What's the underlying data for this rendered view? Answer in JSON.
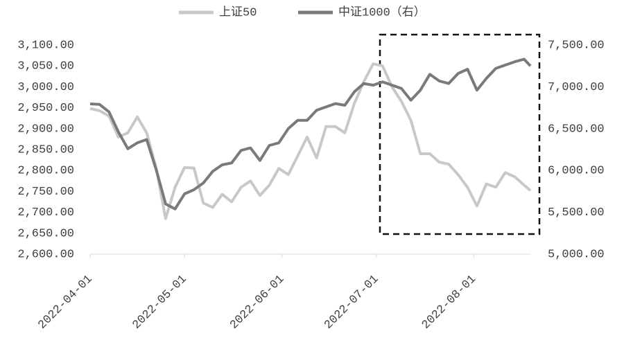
{
  "chart_data": {
    "type": "line",
    "x": [
      "2022-04-01",
      "2022-04-04",
      "2022-04-07",
      "2022-04-10",
      "2022-04-13",
      "2022-04-16",
      "2022-04-19",
      "2022-04-22",
      "2022-04-25",
      "2022-04-28",
      "2022-05-01",
      "2022-05-04",
      "2022-05-07",
      "2022-05-10",
      "2022-05-13",
      "2022-05-16",
      "2022-05-19",
      "2022-05-22",
      "2022-05-25",
      "2022-05-28",
      "2022-05-31",
      "2022-06-03",
      "2022-06-06",
      "2022-06-09",
      "2022-06-12",
      "2022-06-15",
      "2022-06-18",
      "2022-06-21",
      "2022-06-24",
      "2022-06-27",
      "2022-06-30",
      "2022-07-03",
      "2022-07-06",
      "2022-07-09",
      "2022-07-12",
      "2022-07-15",
      "2022-07-18",
      "2022-07-21",
      "2022-07-24",
      "2022-07-27",
      "2022-07-30",
      "2022-08-02",
      "2022-08-05",
      "2022-08-08",
      "2022-08-11",
      "2022-08-14",
      "2022-08-17",
      "2022-08-19"
    ],
    "series": [
      {
        "name": "上证50",
        "color": "#c8c8c8",
        "values": [
          2948,
          2943,
          2930,
          2880,
          2890,
          2928,
          2890,
          2805,
          2685,
          2760,
          2807,
          2806,
          2722,
          2712,
          2743,
          2725,
          2760,
          2775,
          2740,
          2765,
          2805,
          2790,
          2835,
          2880,
          2830,
          2905,
          2905,
          2890,
          2960,
          3012,
          3055,
          3050,
          3000,
          2965,
          2920,
          2840,
          2840,
          2820,
          2815,
          2790,
          2760,
          2715,
          2768,
          2760,
          2795,
          2785,
          2765,
          2752
        ]
      },
      {
        "name": "中证1000（右）",
        "color": "#7a7a7a",
        "axis": "y2",
        "values": [
          6796,
          6790,
          6700,
          6460,
          6260,
          6330,
          6370,
          6010,
          5600,
          5540,
          5720,
          5770,
          5850,
          5990,
          6068,
          6090,
          6240,
          6270,
          6120,
          6300,
          6330,
          6500,
          6600,
          6600,
          6720,
          6760,
          6800,
          6780,
          6940,
          7040,
          7020,
          7060,
          7020,
          6980,
          6840,
          6960,
          7150,
          7070,
          7040,
          7160,
          7210,
          6960,
          7100,
          7220,
          7260,
          7300,
          7330,
          7250
        ]
      }
    ],
    "xlim": [
      "2022-04-01",
      "2022-08-19"
    ],
    "xticks": [
      "2022-04-01",
      "2022-05-01",
      "2022-06-01",
      "2022-07-01",
      "2022-08-01"
    ],
    "ylim": [
      2600,
      3100
    ],
    "yticks": [
      {
        "value": 2600,
        "label": "2,600.00"
      },
      {
        "value": 2650,
        "label": "2,650.00"
      },
      {
        "value": 2700,
        "label": "2,700.00"
      },
      {
        "value": 2750,
        "label": "2,750.00"
      },
      {
        "value": 2800,
        "label": "2,800.00"
      },
      {
        "value": 2850,
        "label": "2,850.00"
      },
      {
        "value": 2900,
        "label": "2,900.00"
      },
      {
        "value": 2950,
        "label": "2,950.00"
      },
      {
        "value": 3000,
        "label": "3,000.00"
      },
      {
        "value": 3050,
        "label": "3,050.00"
      },
      {
        "value": 3100,
        "label": "3,100.00"
      }
    ],
    "y2lim": [
      5000,
      7500
    ],
    "y2ticks": [
      {
        "value": 5000,
        "label": "5,000.00"
      },
      {
        "value": 5500,
        "label": "5,500.00"
      },
      {
        "value": 6000,
        "label": "6,000.00"
      },
      {
        "value": 6500,
        "label": "6,500.00"
      },
      {
        "value": 7000,
        "label": "7,000.00"
      },
      {
        "value": 7500,
        "label": "7,500.00"
      }
    ],
    "grid": false,
    "legend": "top"
  }
}
